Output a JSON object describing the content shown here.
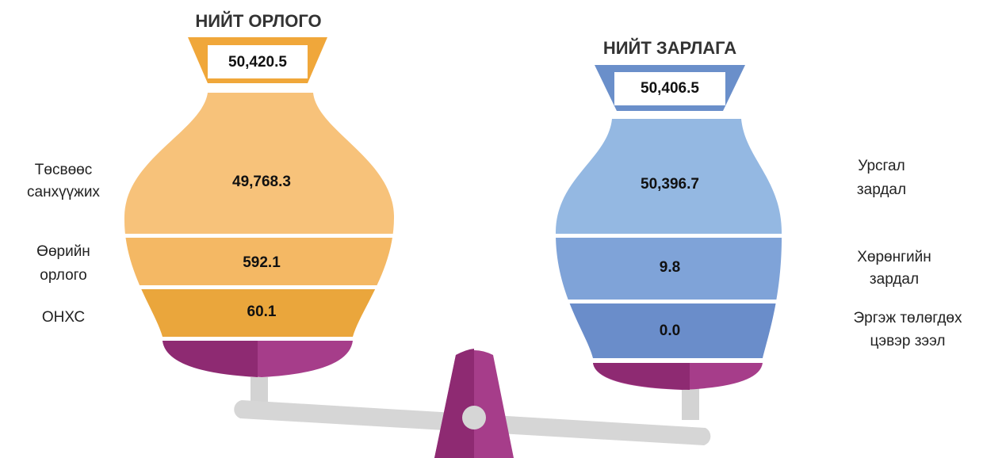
{
  "income": {
    "title": "НИЙТ ОРЛОГО",
    "total": "50,420.5",
    "items": [
      {
        "label": [
          "Төсвөөс",
          "санхүүжих"
        ],
        "value": "49,768.3"
      },
      {
        "label": [
          "Өөрийн",
          "орлого"
        ],
        "value": "592.1"
      },
      {
        "label": [
          "ОНХС"
        ],
        "value": "60.1"
      }
    ]
  },
  "expense": {
    "title": "НИЙТ ЗАРЛАГА",
    "total": "50,406.5",
    "items": [
      {
        "label": [
          "Урсгал",
          "зардал"
        ],
        "value": "50,396.7"
      },
      {
        "label": [
          "Хөрөнгийн",
          "зардал"
        ],
        "value": "9.8"
      },
      {
        "label": [
          "Эргэж төлөгдөх",
          "цэвэр зээл"
        ],
        "value": "0.0"
      }
    ]
  }
}
